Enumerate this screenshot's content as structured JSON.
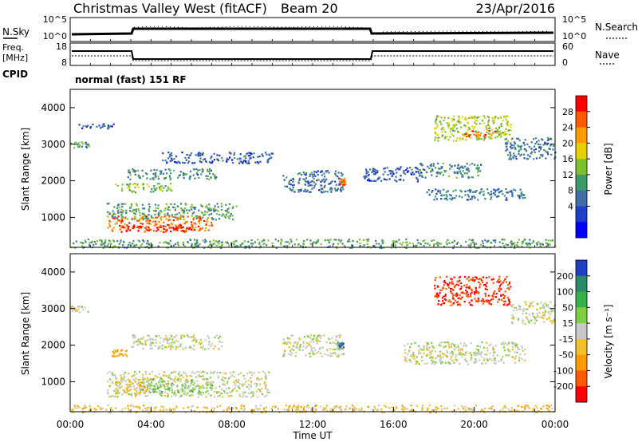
{
  "header": {
    "station": "Christmas Valley West (fitACF)",
    "beam": "Beam 20",
    "date": "23/Apr/2016"
  },
  "nsky_panel": {
    "left_label": "N.Sky",
    "right_label": "N.Search",
    "left_ticks": [
      "10^5",
      "10^0"
    ],
    "right_ticks": [
      "10^5",
      "10^0"
    ]
  },
  "freq_panel": {
    "left_label_top": "Freq.",
    "left_label_bottom": "[MHz]",
    "right_label": "Nave",
    "left_ticks": [
      "18",
      "8"
    ],
    "right_ticks": [
      "60",
      "0"
    ]
  },
  "cpid": {
    "label": "CPID",
    "value": "normal (fast) 151 RF"
  },
  "chart_data": [
    {
      "type": "heatmap",
      "panel": "power",
      "ylabel": "Slant Range [km]",
      "yticks": [
        1000,
        2000,
        3000,
        4000
      ],
      "ylim": [
        180,
        4500
      ],
      "xlim_hours": [
        0,
        24
      ],
      "colorbar_label": "Power [dB]",
      "colorbar_ticks": [
        "28",
        "24",
        "20",
        "16",
        "12",
        "8",
        "4"
      ],
      "colorbar_colors": [
        "#ff0000",
        "#ff5a00",
        "#ff9a00",
        "#e6d200",
        "#7fc030",
        "#3f9a6a",
        "#3f6fa6",
        "#1f3fc8",
        "#0000ff"
      ],
      "regions": [
        {
          "t0": 0.0,
          "t1": 0.9,
          "r0": 2900,
          "r1": 3100,
          "value": 12
        },
        {
          "t0": 0.4,
          "t1": 2.2,
          "r0": 3450,
          "r1": 3600,
          "value": 6
        },
        {
          "t0": 2.2,
          "t1": 5.0,
          "r0": 1700,
          "r1": 1950,
          "value": 14
        },
        {
          "t0": 2.8,
          "t1": 7.2,
          "r0": 2050,
          "r1": 2350,
          "value": 10
        },
        {
          "t0": 1.8,
          "t1": 8.2,
          "r0": 950,
          "r1": 1400,
          "value": 12
        },
        {
          "t0": 1.8,
          "t1": 7.0,
          "r0": 640,
          "r1": 1050,
          "value": 24
        },
        {
          "t0": 2.4,
          "t1": 6.4,
          "r0": 620,
          "r1": 820,
          "value": 28
        },
        {
          "t0": 4.5,
          "t1": 10.0,
          "r0": 2500,
          "r1": 2800,
          "value": 6
        },
        {
          "t0": 10.5,
          "t1": 13.5,
          "r0": 1700,
          "r1": 2300,
          "value": 8
        },
        {
          "t0": 13.3,
          "t1": 13.6,
          "r0": 1900,
          "r1": 2100,
          "value": 24
        },
        {
          "t0": 14.5,
          "t1": 17.5,
          "r0": 2000,
          "r1": 2400,
          "value": 6
        },
        {
          "t0": 17.5,
          "t1": 22.5,
          "r0": 1500,
          "r1": 1800,
          "value": 8
        },
        {
          "t0": 17.2,
          "t1": 20.3,
          "r0": 2100,
          "r1": 2500,
          "value": 10
        },
        {
          "t0": 18.0,
          "t1": 21.8,
          "r0": 3100,
          "r1": 3800,
          "value": 16
        },
        {
          "t0": 19.5,
          "t1": 21.0,
          "r0": 3200,
          "r1": 3400,
          "value": 24
        },
        {
          "t0": 21.5,
          "t1": 24.0,
          "r0": 2600,
          "r1": 3200,
          "value": 8
        },
        {
          "t0": 0.0,
          "t1": 24.0,
          "r0": 180,
          "r1": 420,
          "value": 12
        }
      ]
    },
    {
      "type": "heatmap",
      "panel": "velocity",
      "ylabel": "Slant Range [km]",
      "yticks": [
        1000,
        2000,
        3000,
        4000
      ],
      "ylim": [
        180,
        4500
      ],
      "xlim_hours": [
        0,
        24
      ],
      "xticks": [
        "00:00",
        "04:00",
        "08:00",
        "12:00",
        "16:00",
        "20:00",
        "00:00"
      ],
      "xlabel": "Time UT",
      "colorbar_label": "Velocity [m s⁻¹]",
      "colorbar_ticks": [
        "200",
        "100",
        "50",
        "15",
        "-15",
        "-50",
        "-100",
        "-200"
      ],
      "colorbar_colors": [
        "#2040c0",
        "#2a8a6a",
        "#38b04a",
        "#7ed040",
        "#c8c8c8",
        "#f0c030",
        "#ff9a00",
        "#ff5a00",
        "#ff0000"
      ],
      "regions": [
        {
          "t0": 0.0,
          "t1": 0.9,
          "r0": 2900,
          "r1": 3100,
          "value": 0
        },
        {
          "t0": 2.0,
          "t1": 2.8,
          "r0": 1700,
          "r1": 1900,
          "value": -60
        },
        {
          "t0": 3.0,
          "t1": 7.5,
          "r0": 1900,
          "r1": 2300,
          "value": 0
        },
        {
          "t0": 1.8,
          "t1": 9.8,
          "r0": 600,
          "r1": 1300,
          "value": 0
        },
        {
          "t0": 3.5,
          "t1": 6.0,
          "r0": 700,
          "r1": 1100,
          "value": 30
        },
        {
          "t0": 6.0,
          "t1": 7.0,
          "r0": 700,
          "r1": 1000,
          "value": 30
        },
        {
          "t0": 2.2,
          "t1": 4.0,
          "r0": 700,
          "r1": 1100,
          "value": -30
        },
        {
          "t0": 13.2,
          "t1": 13.5,
          "r0": 1900,
          "r1": 2100,
          "value": 200
        },
        {
          "t0": 10.5,
          "t1": 13.5,
          "r0": 1700,
          "r1": 2300,
          "value": 0
        },
        {
          "t0": 16.5,
          "t1": 22.5,
          "r0": 1500,
          "r1": 2100,
          "value": 0
        },
        {
          "t0": 18.0,
          "t1": 21.8,
          "r0": 3100,
          "r1": 3900,
          "value": -200
        },
        {
          "t0": 21.8,
          "t1": 24.0,
          "r0": 2600,
          "r1": 3200,
          "value": 0
        },
        {
          "t0": 0.0,
          "t1": 24.0,
          "r0": 180,
          "r1": 380,
          "value": -30
        }
      ]
    }
  ]
}
